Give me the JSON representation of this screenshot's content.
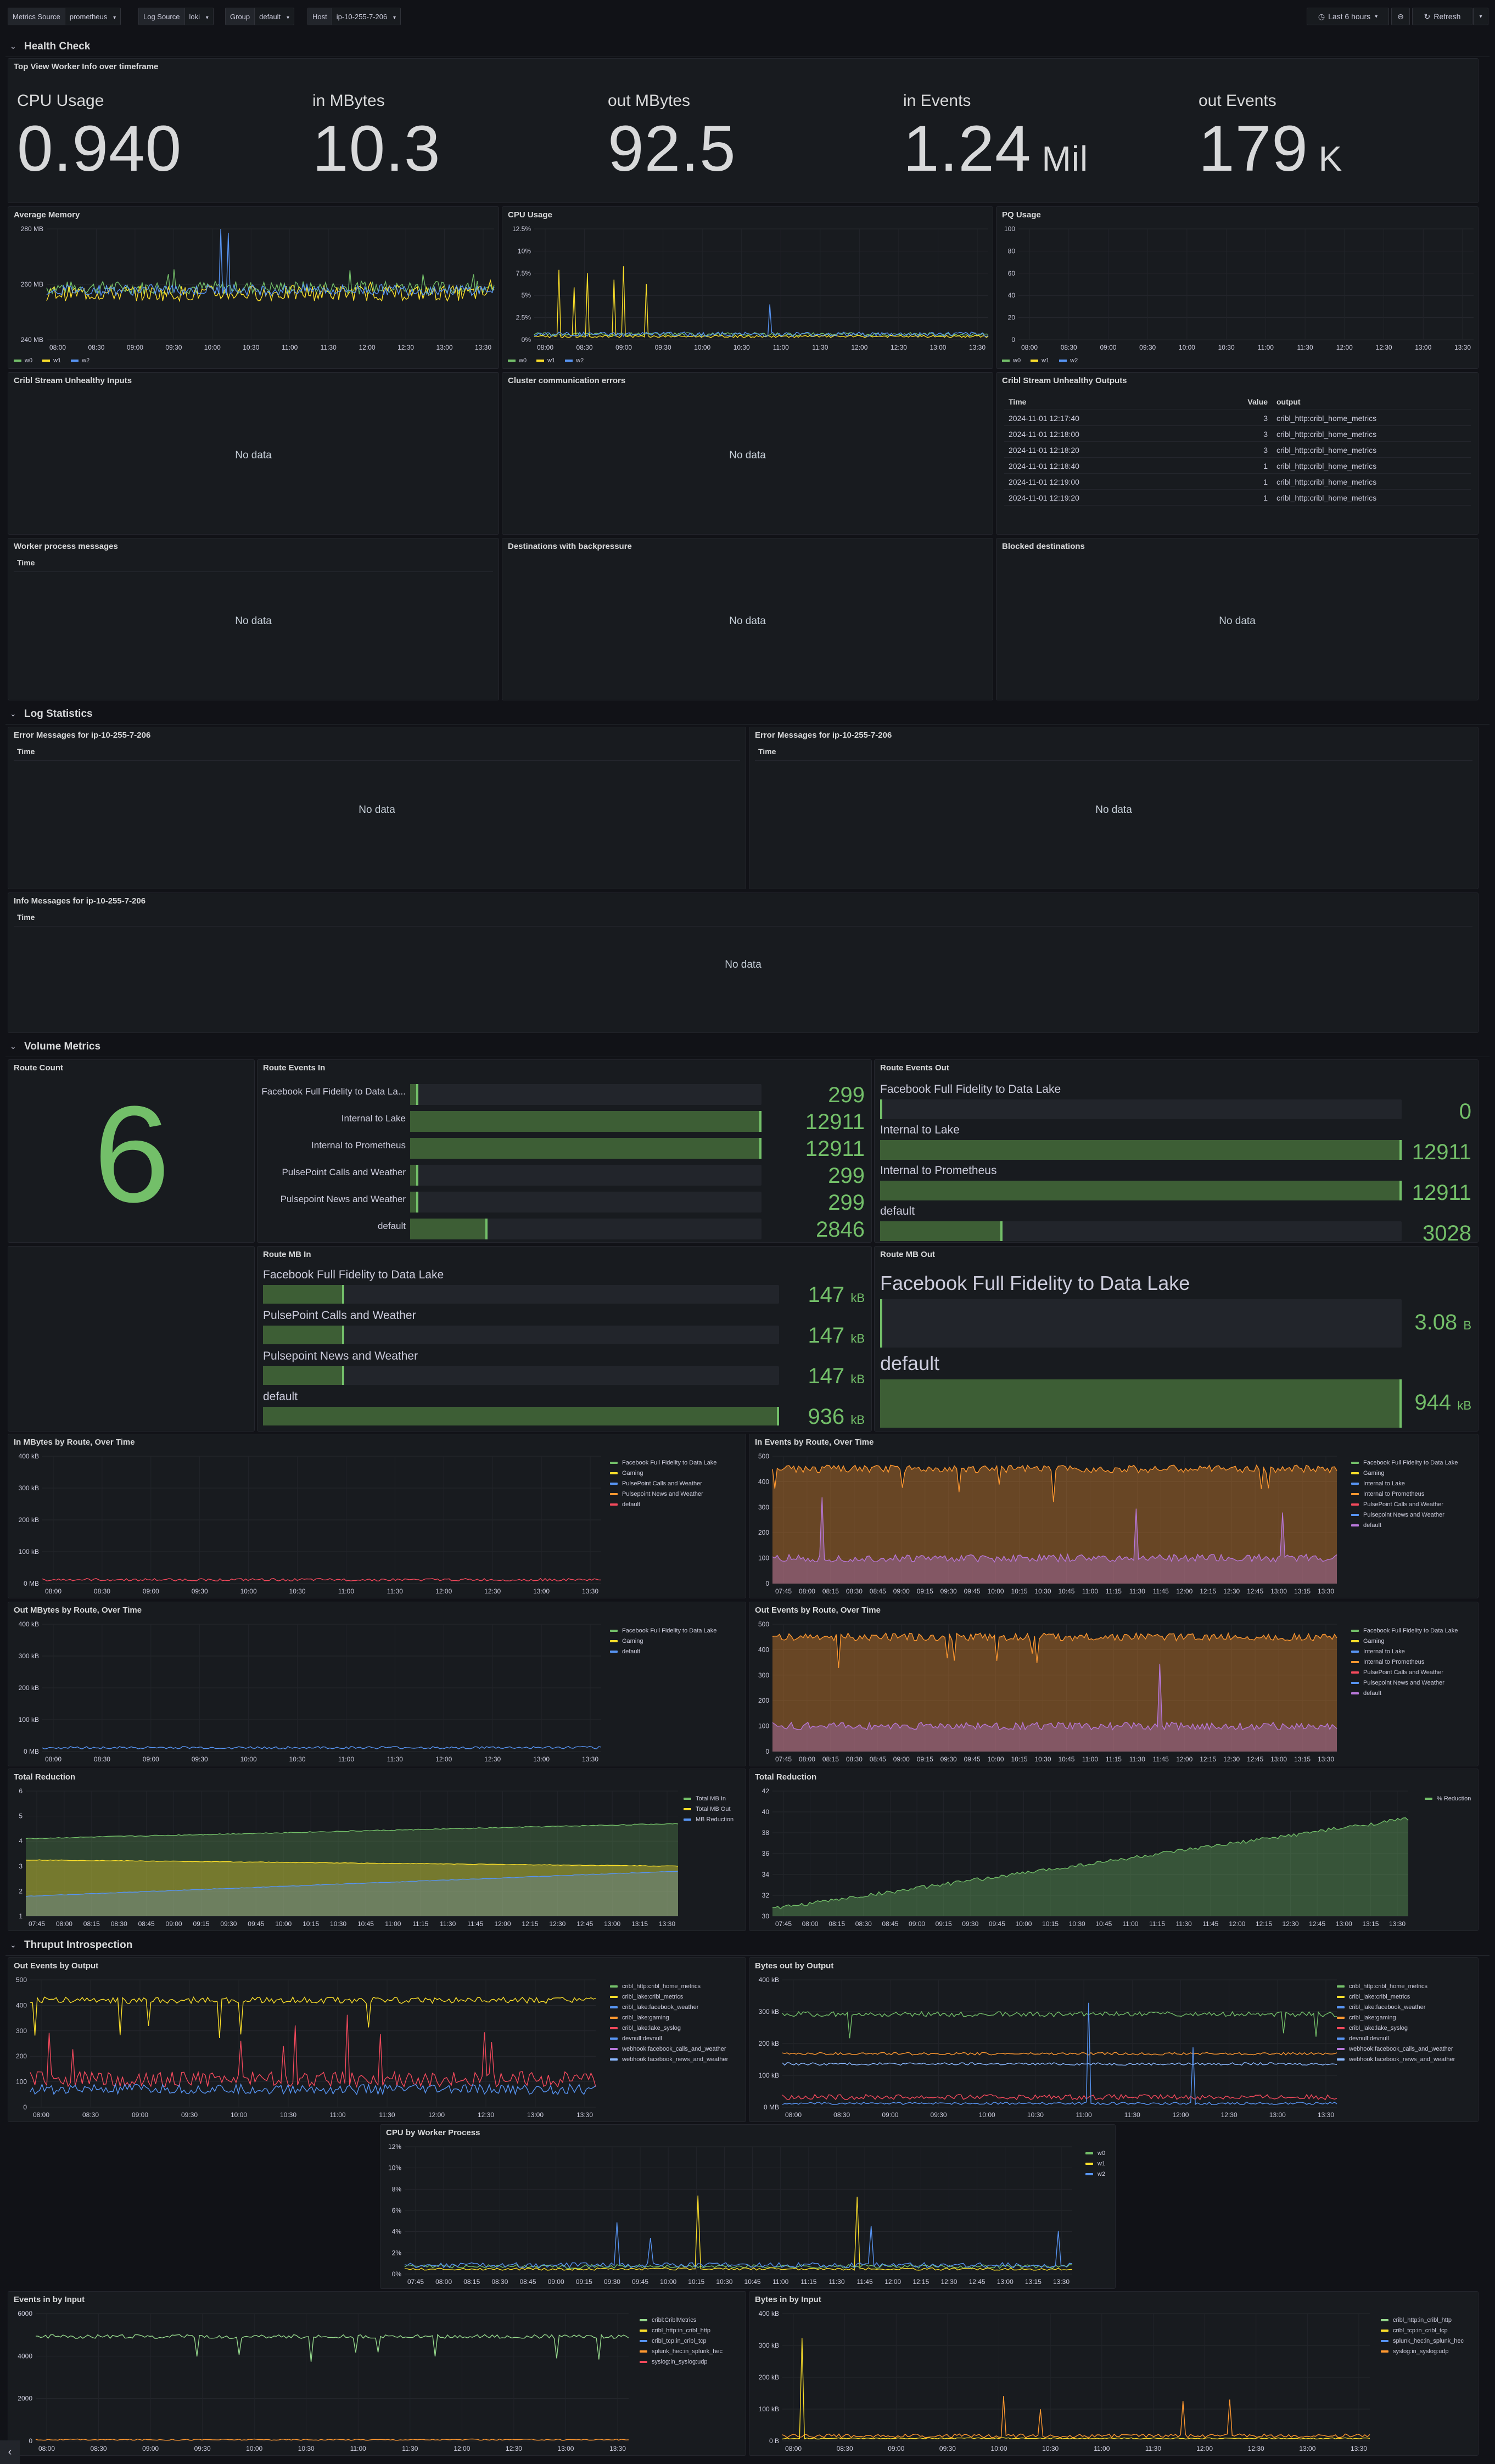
{
  "toolbar": {
    "vars": [
      {
        "label": "Metrics Source",
        "value": "prometheus"
      },
      {
        "label": "Log Source",
        "value": "loki"
      },
      {
        "label": "Group",
        "value": "default"
      },
      {
        "label": "Host",
        "value": "ip-10-255-7-206"
      }
    ],
    "time_range": "Last 6 hours",
    "refresh": "Refresh"
  },
  "colors": {
    "green": "#73bf69",
    "yellow": "#fade2a",
    "blue": "#5794f2",
    "orange": "#ff9830",
    "red": "#f2495c",
    "purple": "#b877d9",
    "lightblue": "#8ab8ff",
    "lightgreen": "#96d98d",
    "darkred": "#c4162a"
  },
  "rows": {
    "health": "Health Check",
    "log": "Log Statistics",
    "volume": "Volume Metrics",
    "thruput": "Thruput Introspection"
  },
  "top_view": {
    "title": "Top View Worker Info over timeframe",
    "stats": [
      {
        "label": "CPU Usage",
        "value": "0.940",
        "unit": ""
      },
      {
        "label": "in MBytes",
        "value": "10.3",
        "unit": ""
      },
      {
        "label": "out MBytes",
        "value": "92.5",
        "unit": ""
      },
      {
        "label": "in Events",
        "value": "1.24",
        "unit": " Mil"
      },
      {
        "label": "out Events",
        "value": "179",
        "unit": " K"
      }
    ]
  },
  "panels": {
    "avg_mem": "Average Memory",
    "cpu": "CPU Usage",
    "pq": "PQ Usage",
    "unhealthy_in": "Cribl Stream Unhealthy Inputs",
    "cluster_err": "Cluster communication errors",
    "unhealthy_out": "Cribl Stream Unhealthy Outputs",
    "worker_msgs": "Worker process messages",
    "backpressure": "Destinations with backpressure",
    "blocked": "Blocked destinations",
    "err1": "Error Messages for ip-10-255-7-206",
    "err2": "Error Messages for ip-10-255-7-206",
    "info": "Info Messages for ip-10-255-7-206",
    "route_count": "Route Count",
    "route_ev_in": "Route Events In",
    "route_ev_out": "Route Events Out",
    "route_mb_in": "Route MB In",
    "route_mb_out": "Route MB Out",
    "in_mb_route": "In MBytes by Route, Over Time",
    "in_ev_route": "In Events by Route, Over Time",
    "out_mb_route": "Out MBytes by Route, Over Time",
    "out_ev_route": "Out Events by Route, Over Time",
    "total_red1": "Total Reduction",
    "total_red2": "Total Reduction",
    "out_ev_output": "Out Events by Output",
    "bytes_out_output": "Bytes out by Output",
    "cpu_worker": "CPU by Worker Process",
    "ev_in_input": "Events in by Input",
    "bytes_in_input": "Bytes in by Input"
  },
  "no_data": "No data",
  "time_col": "Time",
  "worker_legend": [
    "w0",
    "w1",
    "w2"
  ],
  "avg_mem_y": [
    "280 MB",
    "260 MB",
    "240 MB"
  ],
  "cpu_y": [
    "12.5%",
    "10%",
    "7.5%",
    "5%",
    "2.5%",
    "0%"
  ],
  "pq_y": [
    "100",
    "80",
    "60",
    "40",
    "20",
    "0"
  ],
  "x_ticks_a": [
    "08:00",
    "08:30",
    "09:00",
    "09:30",
    "10:00",
    "10:30",
    "11:00",
    "11:30",
    "12:00",
    "12:30",
    "13:00",
    "13:30"
  ],
  "x_ticks_b": [
    "07:45",
    "08:00",
    "08:15",
    "08:30",
    "08:45",
    "09:00",
    "09:15",
    "09:30",
    "09:45",
    "10:00",
    "10:15",
    "10:30",
    "10:45",
    "11:00",
    "11:15",
    "11:30",
    "11:45",
    "12:00",
    "12:15",
    "12:30",
    "12:45",
    "13:00",
    "13:15",
    "13:30"
  ],
  "unhealthy_out_table": {
    "headers": [
      "Time",
      "Value",
      "output"
    ],
    "rows": [
      [
        "2024-11-01 12:17:40",
        "3",
        "cribl_http:cribl_home_metrics"
      ],
      [
        "2024-11-01 12:18:00",
        "3",
        "cribl_http:cribl_home_metrics"
      ],
      [
        "2024-11-01 12:18:20",
        "3",
        "cribl_http:cribl_home_metrics"
      ],
      [
        "2024-11-01 12:18:40",
        "1",
        "cribl_http:cribl_home_metrics"
      ],
      [
        "2024-11-01 12:19:00",
        "1",
        "cribl_http:cribl_home_metrics"
      ],
      [
        "2024-11-01 12:19:20",
        "1",
        "cribl_http:cribl_home_metrics"
      ]
    ]
  },
  "route_count": "6",
  "route_events_in": [
    {
      "name": "Facebook Full Fidelity to Data La...",
      "value": "299",
      "fraction": 0.023
    },
    {
      "name": "Internal to Lake",
      "value": "12911",
      "fraction": 1.0
    },
    {
      "name": "Internal to Prometheus",
      "value": "12911",
      "fraction": 1.0
    },
    {
      "name": "PulsePoint Calls and Weather",
      "value": "299",
      "fraction": 0.023
    },
    {
      "name": "Pulsepoint News and Weather",
      "value": "299",
      "fraction": 0.023
    },
    {
      "name": "default",
      "value": "2846",
      "fraction": 0.22
    }
  ],
  "route_events_out": [
    {
      "name": "Facebook Full Fidelity to Data Lake",
      "value": "0",
      "fraction": 0.0
    },
    {
      "name": "Internal to Lake",
      "value": "12911",
      "fraction": 1.0
    },
    {
      "name": "Internal to Prometheus",
      "value": "12911",
      "fraction": 1.0
    },
    {
      "name": "default",
      "value": "3028",
      "fraction": 0.235
    }
  ],
  "route_mb_in": [
    {
      "name": "Facebook Full Fidelity to Data Lake",
      "value": "147",
      "unit": "kB",
      "fraction": 0.157
    },
    {
      "name": "PulsePoint Calls and Weather",
      "value": "147",
      "unit": "kB",
      "fraction": 0.157
    },
    {
      "name": "Pulsepoint News and Weather",
      "value": "147",
      "unit": "kB",
      "fraction": 0.157
    },
    {
      "name": "default",
      "value": "936",
      "unit": "kB",
      "fraction": 1.0
    }
  ],
  "route_mb_out": [
    {
      "name": "Facebook Full Fidelity to Data Lake",
      "value": "3.08",
      "unit": "B",
      "fraction": 0.0
    },
    {
      "name": "default",
      "value": "944",
      "unit": "kB",
      "fraction": 1.0
    }
  ],
  "kb_y": [
    "400 kB",
    "300 kB",
    "200 kB",
    "100 kB",
    "0 MB"
  ],
  "ev_y": [
    "500",
    "400",
    "300",
    "200",
    "100",
    "0"
  ],
  "in_mb_route_legend": [
    "Facebook Full Fidelity to Data Lake",
    "Gaming",
    "PulsePoint Calls and Weather",
    "Pulsepoint News and Weather",
    "default"
  ],
  "in_ev_route_legend": [
    "Facebook Full Fidelity to Data Lake",
    "Gaming",
    "Internal to Lake",
    "Internal to Prometheus",
    "PulsePoint Calls and Weather",
    "Pulsepoint News and Weather",
    "default"
  ],
  "out_mb_route_legend": [
    "Facebook Full Fidelity to Data Lake",
    "Gaming",
    "default"
  ],
  "out_ev_route_legend": [
    "Facebook Full Fidelity to Data Lake",
    "Gaming",
    "Internal to Lake",
    "Internal to Prometheus",
    "PulsePoint Calls and Weather",
    "Pulsepoint News and Weather",
    "default"
  ],
  "total_red1_y": [
    "6",
    "5",
    "4",
    "3",
    "2",
    "1"
  ],
  "total_red1_legend": [
    "Total MB In",
    "Total MB Out",
    "MB Reduction"
  ],
  "total_red2_y": [
    "42",
    "40",
    "38",
    "36",
    "34",
    "32",
    "30"
  ],
  "total_red2_legend": [
    "% Reduction"
  ],
  "out_ev_output_legend": [
    "cribl_http:cribl_home_metrics",
    "cribl_lake:cribl_metrics",
    "cribl_lake:facebook_weather",
    "cribl_lake:gaming",
    "cribl_lake:lake_syslog",
    "devnull:devnull",
    "webhook:facebook_calls_and_weather",
    "webhook:facebook_news_and_weather"
  ],
  "out_ev_output_y": [
    "500",
    "400",
    "300",
    "200",
    "100",
    "0"
  ],
  "bytes_out_output_y": [
    "400 kB",
    "300 kB",
    "200 kB",
    "100 kB",
    "0 MB"
  ],
  "cpu_worker_y": [
    "12%",
    "10%",
    "8%",
    "6%",
    "4%",
    "2%",
    "0%"
  ],
  "ev_in_input_legend": [
    "cribl:CriblMetrics",
    "cribl_http:in_cribl_http",
    "cribl_tcp:in_cribl_tcp",
    "splunk_hec:in_splunk_hec",
    "syslog:in_syslog:udp"
  ],
  "ev_in_input_y": [
    "6000",
    "4000",
    "2000",
    "0"
  ],
  "bytes_in_input_legend": [
    "cribl_http:in_cribl_http",
    "cribl_tcp:in_cribl_tcp",
    "splunk_hec:in_splunk_hec",
    "syslog:in_syslog:udp"
  ],
  "bytes_in_input_y": [
    "400 kB",
    "300 kB",
    "200 kB",
    "100 kB",
    "0 B"
  ]
}
